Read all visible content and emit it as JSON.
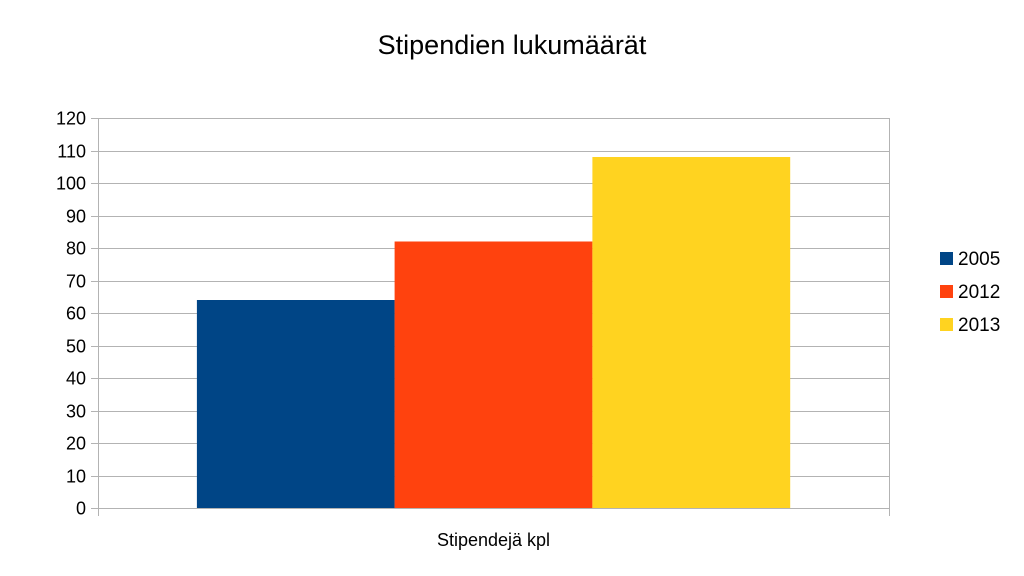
{
  "chart_data": {
    "type": "bar",
    "title": "Stipendien lukumäärät",
    "categories": [
      "Stipendejä kpl"
    ],
    "series": [
      {
        "name": "2005",
        "values": [
          64
        ],
        "color": "#004586"
      },
      {
        "name": "2012",
        "values": [
          82
        ],
        "color": "#ff420e"
      },
      {
        "name": "2013",
        "values": [
          108
        ],
        "color": "#ffd320"
      }
    ],
    "xlabel": "",
    "ylabel": "",
    "ylim": [
      0,
      120
    ],
    "yticks": [
      0,
      10,
      20,
      30,
      40,
      50,
      60,
      70,
      80,
      90,
      100,
      110,
      120
    ],
    "grid": true,
    "legend_position": "right"
  }
}
